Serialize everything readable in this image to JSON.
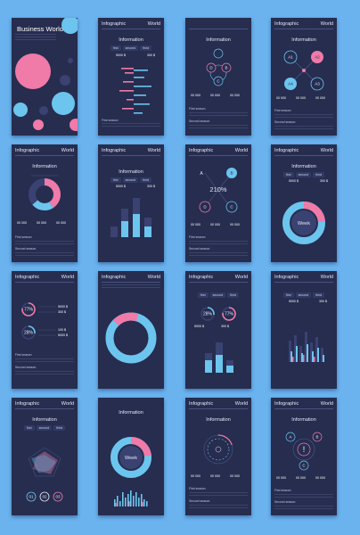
{
  "cover": {
    "title": "Business World"
  },
  "header": {
    "left": "Infographic",
    "right": "World"
  },
  "section": {
    "title": "Information"
  },
  "tabs": [
    "first",
    "second",
    "third"
  ],
  "stats": {
    "value_a": "5000 $",
    "value_b": "300 $",
    "value_c": "100 $",
    "value_d": "00 000",
    "value_e": "00 000",
    "value_f": "00 000"
  },
  "labels": {
    "first_season": "First season",
    "second_season": "Second season"
  },
  "nodes": {
    "a": "A",
    "b": "B",
    "c": "C",
    "d": "D",
    "a1": "A1",
    "a2": "A2",
    "a3": "A3",
    "a4": "A4"
  },
  "percents": {
    "p210": "210%",
    "p77": "77%",
    "p28": "28%"
  },
  "week": "Week",
  "circle_nums": {
    "n01": "01",
    "n02": "02",
    "n03": "03"
  },
  "alert": "!",
  "colors": {
    "background": "#6ab3ef",
    "page": "#262d4f",
    "pink": "#f07aa8",
    "blue": "#6cc5ee",
    "light": "#e4e8f7"
  }
}
